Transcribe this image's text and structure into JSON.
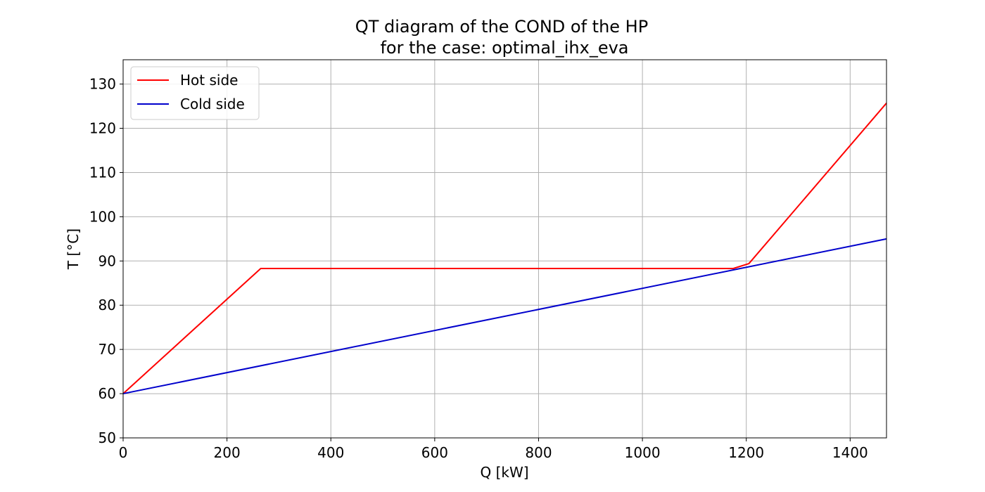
{
  "chart_data": {
    "type": "line",
    "title": "QT diagram of the COND of the HP",
    "subtitle": "for the case: optimal_ihx_eva",
    "xlabel": "Q [kW]",
    "ylabel": "T [°C]",
    "xlim": [
      0,
      1470
    ],
    "ylim": [
      50,
      135.5
    ],
    "xticks": [
      0,
      200,
      400,
      600,
      800,
      1000,
      1200,
      1400
    ],
    "yticks": [
      50,
      60,
      70,
      80,
      90,
      100,
      110,
      120,
      130
    ],
    "grid": true,
    "legend_position": "top-left",
    "series": [
      {
        "name": "Hot side",
        "color": "#ff0000",
        "x": [
          0,
          265,
          1175,
          1205,
          1470
        ],
        "y": [
          60,
          88.3,
          88.3,
          89.4,
          125.7
        ]
      },
      {
        "name": "Cold side",
        "color": "#0000cc",
        "x": [
          0,
          1470
        ],
        "y": [
          60,
          95
        ]
      }
    ]
  }
}
